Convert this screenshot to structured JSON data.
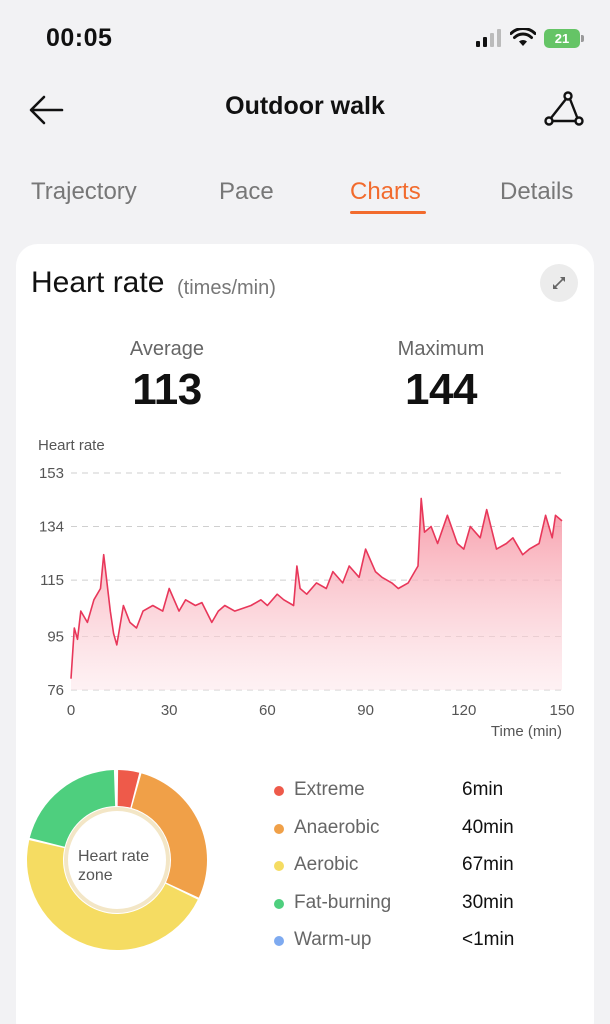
{
  "status": {
    "time": "00:05",
    "battery": "21"
  },
  "nav": {
    "title": "Outdoor walk"
  },
  "tabs": [
    {
      "label": "Trajectory",
      "active": false
    },
    {
      "label": "Pace",
      "active": false
    },
    {
      "label": "Charts",
      "active": true
    },
    {
      "label": "Details",
      "active": false
    }
  ],
  "heart_rate": {
    "title": "Heart rate",
    "unit": "(times/min)",
    "average_label": "Average",
    "average_value": "113",
    "maximum_label": "Maximum",
    "maximum_value": "144"
  },
  "chart_data": {
    "type": "area",
    "title": "",
    "ylabel": "Heart rate",
    "xlabel": "Time (min)",
    "ylim": [
      76,
      153
    ],
    "xlim": [
      0,
      150
    ],
    "yticks": [
      153,
      134,
      115,
      95,
      76
    ],
    "xticks": [
      0,
      30,
      60,
      90,
      120,
      150
    ],
    "grid": true,
    "color": "#e8375a",
    "x": [
      0,
      1,
      2,
      3,
      5,
      7,
      9,
      10,
      11,
      12,
      13,
      14,
      16,
      18,
      20,
      22,
      25,
      28,
      30,
      33,
      35,
      38,
      40,
      43,
      45,
      47,
      50,
      55,
      58,
      60,
      63,
      65,
      68,
      69,
      70,
      72,
      75,
      78,
      80,
      83,
      85,
      88,
      90,
      93,
      95,
      98,
      100,
      103,
      105,
      106,
      107,
      108,
      110,
      112,
      115,
      118,
      120,
      122,
      125,
      127,
      130,
      133,
      135,
      138,
      140,
      143,
      145,
      147,
      148,
      150
    ],
    "values": [
      80,
      98,
      94,
      104,
      100,
      108,
      112,
      124,
      114,
      104,
      96,
      92,
      106,
      100,
      98,
      104,
      106,
      104,
      112,
      104,
      108,
      106,
      107,
      100,
      104,
      106,
      104,
      106,
      108,
      106,
      110,
      108,
      106,
      120,
      112,
      110,
      114,
      112,
      118,
      114,
      120,
      116,
      126,
      118,
      116,
      114,
      112,
      114,
      118,
      120,
      144,
      132,
      134,
      128,
      138,
      128,
      126,
      134,
      130,
      140,
      126,
      128,
      130,
      124,
      126,
      128,
      138,
      130,
      138,
      136
    ]
  },
  "zones": {
    "center_label": "Heart rate zone",
    "items": [
      {
        "name": "Extreme",
        "value": "6min",
        "minutes": 6,
        "color": "#ee5a4a"
      },
      {
        "name": "Anaerobic",
        "value": "40min",
        "minutes": 40,
        "color": "#f0a048"
      },
      {
        "name": "Aerobic",
        "value": "67min",
        "minutes": 67,
        "color": "#f5dc62"
      },
      {
        "name": "Fat-burning",
        "value": "30min",
        "minutes": 30,
        "color": "#4ecf7e"
      },
      {
        "name": "Warm-up",
        "value": "<1min",
        "minutes": 0.5,
        "color": "#7eaaf0"
      }
    ]
  }
}
